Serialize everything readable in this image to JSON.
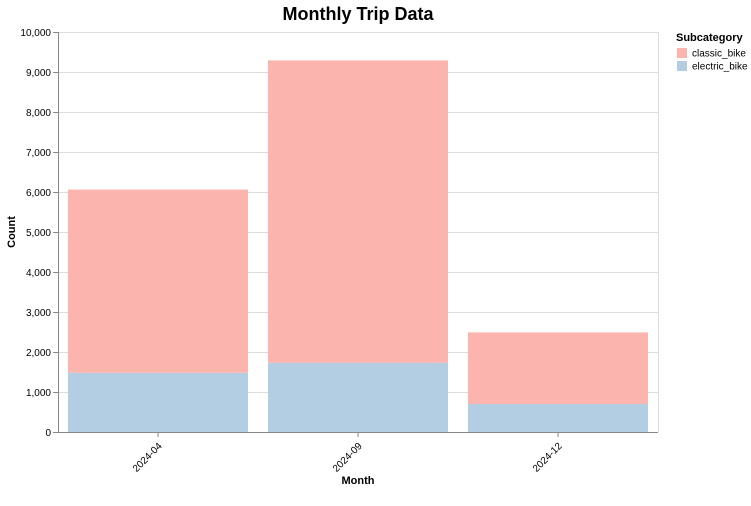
{
  "chart_data": {
    "type": "bar",
    "stacked": true,
    "title": "Monthly Trip Data",
    "xlabel": "Month",
    "ylabel": "Count",
    "categories": [
      "2024-04",
      "2024-09",
      "2024-12"
    ],
    "series": [
      {
        "name": "electric_bike",
        "values": [
          1480,
          1730,
          700
        ],
        "color": "#b3cde3"
      },
      {
        "name": "classic_bike",
        "values": [
          4580,
          7560,
          1790
        ],
        "color": "#fbb4ae"
      }
    ],
    "ylim": [
      0,
      10000
    ],
    "yticks": [
      0,
      1000,
      2000,
      3000,
      4000,
      5000,
      6000,
      7000,
      8000,
      9000,
      10000
    ],
    "grid": true,
    "legend": {
      "title": "Subcategory",
      "position": "top-right",
      "entries": [
        "classic_bike",
        "electric_bike"
      ]
    }
  }
}
